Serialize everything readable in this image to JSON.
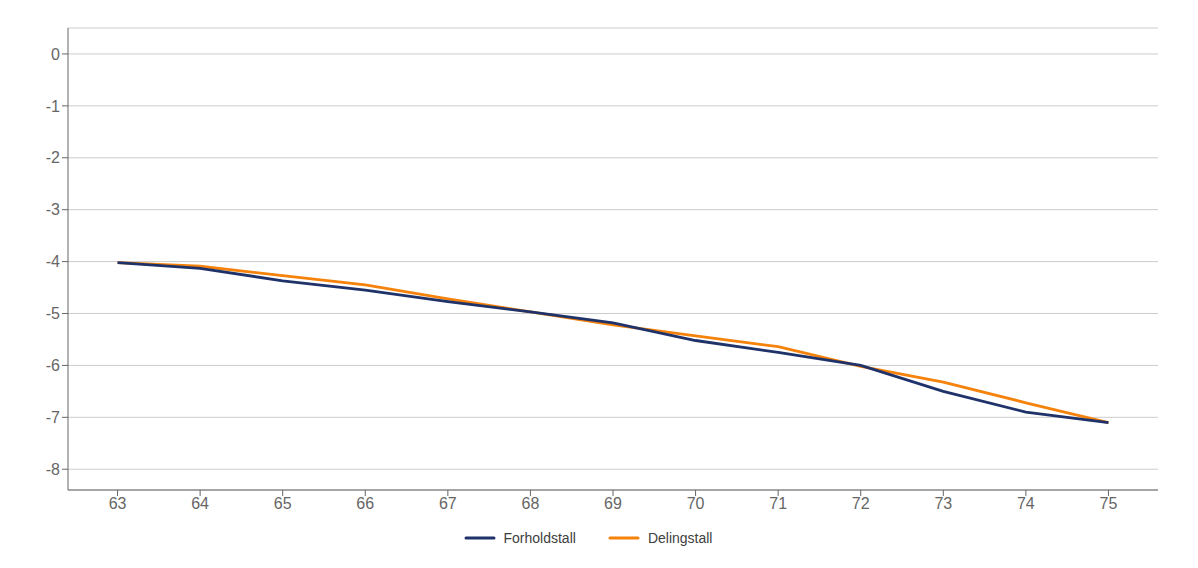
{
  "chart_data": {
    "type": "line",
    "x": [
      63,
      64,
      65,
      66,
      67,
      68,
      69,
      70,
      71,
      72,
      73,
      74,
      75
    ],
    "series": [
      {
        "name": "Forholdstall",
        "color": "#1f3269",
        "values": [
          -4.02,
          -4.13,
          -4.37,
          -4.55,
          -4.77,
          -4.97,
          -5.18,
          -5.52,
          -5.75,
          -6.0,
          -6.5,
          -6.9,
          -7.1
        ]
      },
      {
        "name": "Delingstall",
        "color": "#f5820a",
        "values": [
          -4.02,
          -4.09,
          -4.27,
          -4.45,
          -4.72,
          -4.97,
          -5.22,
          -5.43,
          -5.64,
          -6.02,
          -6.32,
          -6.72,
          -7.1
        ]
      }
    ],
    "xlim": [
      62.4,
      75.6
    ],
    "ylim": [
      -8.4,
      0.5
    ],
    "xticks": [
      63,
      64,
      65,
      66,
      67,
      68,
      69,
      70,
      71,
      72,
      73,
      74,
      75
    ],
    "yticks": [
      0,
      -1,
      -2,
      -3,
      -4,
      -5,
      -6,
      -7,
      -8
    ],
    "grid": "y",
    "legend": "bottom"
  }
}
